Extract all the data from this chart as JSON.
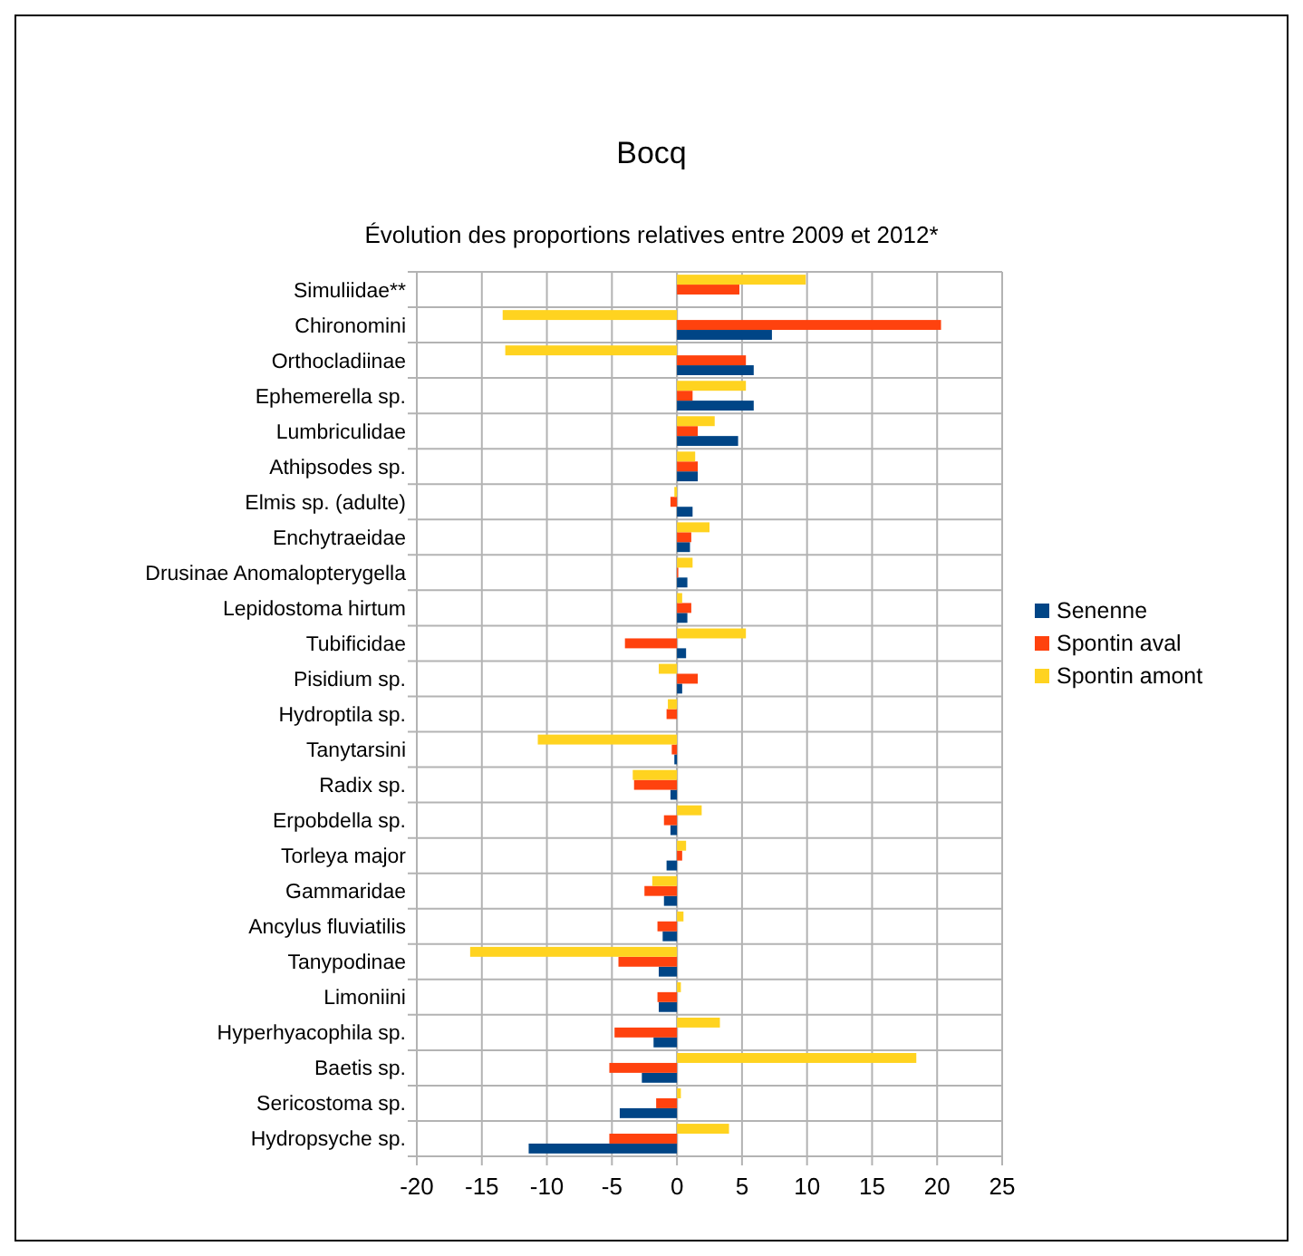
{
  "chart_data": {
    "type": "bar",
    "orientation": "horizontal",
    "title": "Bocq",
    "subtitle": "Évolution des proportions relatives entre 2009 et 2012*",
    "categories": [
      "Simuliidae**",
      "Chironomini",
      "Orthocladiinae",
      "Ephemerella sp.",
      "Lumbriculidae",
      "Athipsodes sp.",
      "Elmis sp. (adulte)",
      "Enchytraeidae",
      "Drusinae Anomalopterygella",
      "Lepidostoma hirtum",
      "Tubificidae",
      "Pisidium sp.",
      "Hydroptila sp.",
      "Tanytarsini",
      "Radix sp.",
      "Erpobdella sp.",
      "Torleya major",
      "Gammaridae",
      "Ancylus fluviatilis",
      "Tanypodinae",
      "Limoniini",
      "Hyperhyacophila sp.",
      "Baetis sp.",
      "Sericostoma sp.",
      "Hydropsyche sp."
    ],
    "series": [
      {
        "name": "Senenne",
        "color": "#004586",
        "values": [
          null,
          7.3,
          5.9,
          5.9,
          4.7,
          1.6,
          1.2,
          1.0,
          0.8,
          0.8,
          0.7,
          0.4,
          null,
          -0.2,
          -0.5,
          -0.5,
          -0.8,
          -1.0,
          -1.1,
          -1.4,
          -1.4,
          -1.8,
          -2.7,
          -4.4,
          -11.4
        ]
      },
      {
        "name": "Spontin aval",
        "color": "#ff420e",
        "values": [
          4.8,
          20.3,
          5.3,
          1.2,
          1.6,
          1.6,
          -0.5,
          1.1,
          0.1,
          1.1,
          -4.0,
          1.6,
          -0.8,
          -0.4,
          -3.3,
          -1.0,
          0.4,
          -2.5,
          -1.5,
          -4.5,
          -1.5,
          -4.8,
          -5.2,
          -1.6,
          -5.2
        ]
      },
      {
        "name": "Spontin amont",
        "color": "#ffd320",
        "values": [
          9.9,
          -13.4,
          -13.2,
          5.3,
          2.9,
          1.4,
          -0.2,
          2.5,
          1.2,
          0.4,
          5.3,
          -1.4,
          -0.7,
          -10.7,
          -3.4,
          1.9,
          0.7,
          -1.9,
          0.5,
          -15.9,
          0.3,
          3.3,
          18.4,
          0.3,
          4.0
        ]
      }
    ],
    "xlim": [
      -20,
      25
    ],
    "xticks": [
      -20,
      -15,
      -10,
      -5,
      0,
      5,
      10,
      15,
      20,
      25
    ],
    "grid": true,
    "legend": "right"
  }
}
